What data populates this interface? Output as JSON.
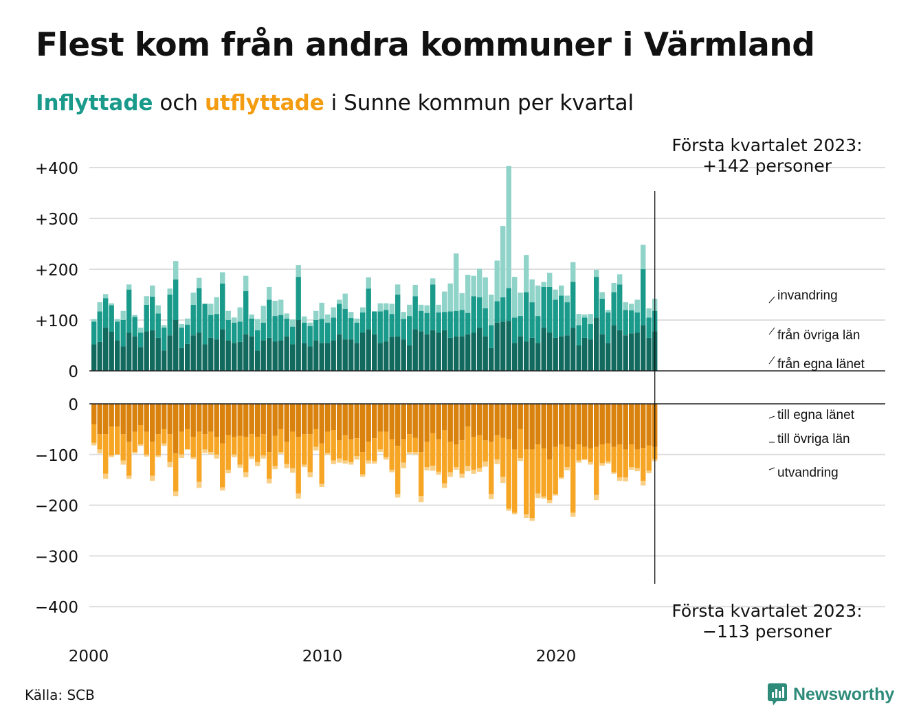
{
  "title": "Flest kom från andra kommuner i Värmland",
  "subtitle": {
    "in_word": "Inflyttade",
    "mid_word": " och ",
    "out_word": "utflyttade",
    "rest": " i Sunne kommun per kvartal"
  },
  "source": "Källa: SCB",
  "brand": "Newsworthy",
  "colors": {
    "in_own_county": "#126a5e",
    "in_other_counties": "#1a9a8a",
    "in_immigration": "#8fd3c9",
    "out_own_county": "#d9820d",
    "out_other_counties": "#f7a524",
    "out_emigration": "#f9cf86",
    "grid": "#dddddd",
    "brand": "#2e8b7a"
  },
  "chart_data": {
    "type": "bar",
    "stacked": true,
    "title": "Flest kom från andra kommuner i Värmland",
    "x_start": "2000 Q1",
    "x_ticks": [
      "2000",
      "2010",
      "2020"
    ],
    "y_ticks": [
      "+400",
      "+300",
      "+200",
      "+100",
      "0"
    ],
    "y_ticks_neg": [
      "0",
      "−100",
      "−200",
      "−300",
      "−400"
    ],
    "ylim": [
      -400,
      400
    ],
    "grid": true,
    "annotation_top": [
      "Första kvartalet 2023:",
      "+142 personer"
    ],
    "annotation_bottom": [
      "Första kvartalet 2023:",
      "−113 personer"
    ],
    "series_labels_in": [
      "invandring",
      "från övriga län",
      "från egna länet"
    ],
    "series_labels_out": [
      "till egna länet",
      "till övriga län",
      "utvandring"
    ],
    "inflow": [
      [
        52,
        45,
        5
      ],
      [
        57,
        60,
        18
      ],
      [
        85,
        58,
        8
      ],
      [
        77,
        52,
        4
      ],
      [
        60,
        37,
        5
      ],
      [
        48,
        52,
        18
      ],
      [
        75,
        85,
        10
      ],
      [
        68,
        38,
        4
      ],
      [
        47,
        28,
        10
      ],
      [
        78,
        52,
        17
      ],
      [
        80,
        66,
        22
      ],
      [
        65,
        48,
        16
      ],
      [
        40,
        45,
        5
      ],
      [
        70,
        80,
        12
      ],
      [
        100,
        80,
        36
      ],
      [
        45,
        40,
        7
      ],
      [
        53,
        38,
        12
      ],
      [
        70,
        60,
        24
      ],
      [
        75,
        88,
        20
      ],
      [
        52,
        80,
        0
      ],
      [
        65,
        45,
        22
      ],
      [
        62,
        50,
        33
      ],
      [
        82,
        90,
        22
      ],
      [
        60,
        40,
        18
      ],
      [
        55,
        40,
        10
      ],
      [
        57,
        40,
        28
      ],
      [
        72,
        85,
        30
      ],
      [
        68,
        35,
        8
      ],
      [
        40,
        40,
        22
      ],
      [
        60,
        35,
        33
      ],
      [
        65,
        75,
        25
      ],
      [
        58,
        50,
        30
      ],
      [
        60,
        50,
        30
      ],
      [
        68,
        35,
        10
      ],
      [
        52,
        35,
        14
      ],
      [
        100,
        85,
        23
      ],
      [
        55,
        40,
        12
      ],
      [
        48,
        40,
        7
      ],
      [
        60,
        40,
        18
      ],
      [
        55,
        47,
        32
      ],
      [
        55,
        40,
        16
      ],
      [
        60,
        45,
        20
      ],
      [
        72,
        60,
        8
      ],
      [
        62,
        60,
        30
      ],
      [
        62,
        42,
        12
      ],
      [
        55,
        40,
        8
      ],
      [
        75,
        40,
        10
      ],
      [
        82,
        80,
        22
      ],
      [
        72,
        45,
        0
      ],
      [
        55,
        62,
        16
      ],
      [
        58,
        62,
        13
      ],
      [
        67,
        45,
        20
      ],
      [
        68,
        82,
        20
      ],
      [
        62,
        40,
        14
      ],
      [
        50,
        58,
        22
      ],
      [
        82,
        65,
        22
      ],
      [
        78,
        40,
        12
      ],
      [
        72,
        42,
        15
      ],
      [
        80,
        90,
        12
      ],
      [
        75,
        40,
        15
      ],
      [
        80,
        36,
        40
      ],
      [
        65,
        52,
        55
      ],
      [
        68,
        50,
        113
      ],
      [
        68,
        52,
        33
      ],
      [
        72,
        42,
        75
      ],
      [
        75,
        72,
        40
      ],
      [
        85,
        60,
        56
      ],
      [
        68,
        55,
        61
      ],
      [
        45,
        45,
        60
      ],
      [
        95,
        42,
        80
      ],
      [
        97,
        48,
        140
      ],
      [
        98,
        65,
        240
      ],
      [
        55,
        50,
        80
      ],
      [
        68,
        40,
        46
      ],
      [
        58,
        97,
        73
      ],
      [
        65,
        70,
        45
      ],
      [
        55,
        53,
        60
      ],
      [
        85,
        80,
        10
      ],
      [
        75,
        90,
        28
      ],
      [
        65,
        75,
        20
      ],
      [
        68,
        80,
        20
      ],
      [
        70,
        65,
        13
      ],
      [
        85,
        90,
        39
      ],
      [
        50,
        40,
        22
      ],
      [
        65,
        40,
        6
      ],
      [
        62,
        30,
        20
      ],
      [
        105,
        80,
        14
      ],
      [
        72,
        70,
        13
      ],
      [
        55,
        60,
        5
      ],
      [
        90,
        65,
        18
      ],
      [
        80,
        90,
        20
      ],
      [
        70,
        50,
        15
      ],
      [
        74,
        45,
        13
      ],
      [
        75,
        40,
        25
      ],
      [
        90,
        110,
        48
      ],
      [
        65,
        40,
        18
      ],
      [
        78,
        40,
        24
      ]
    ],
    "outflow": [
      [
        40,
        37,
        5
      ],
      [
        60,
        30,
        8
      ],
      [
        60,
        78,
        10
      ],
      [
        45,
        57,
        3
      ],
      [
        45,
        55,
        0
      ],
      [
        60,
        52,
        8
      ],
      [
        75,
        67,
        6
      ],
      [
        55,
        40,
        3
      ],
      [
        42,
        38,
        3
      ],
      [
        55,
        45,
        4
      ],
      [
        75,
        67,
        10
      ],
      [
        60,
        42,
        3
      ],
      [
        50,
        28,
        5
      ],
      [
        60,
        55,
        10
      ],
      [
        98,
        75,
        9
      ],
      [
        55,
        45,
        7
      ],
      [
        50,
        40,
        0
      ],
      [
        65,
        40,
        4
      ],
      [
        55,
        99,
        12
      ],
      [
        60,
        30,
        7
      ],
      [
        55,
        40,
        5
      ],
      [
        65,
        35,
        8
      ],
      [
        78,
        87,
        6
      ],
      [
        62,
        68,
        7
      ],
      [
        65,
        35,
        5
      ],
      [
        63,
        57,
        6
      ],
      [
        65,
        70,
        10
      ],
      [
        60,
        44,
        5
      ],
      [
        65,
        50,
        8
      ],
      [
        60,
        42,
        6
      ],
      [
        95,
        53,
        9
      ],
      [
        63,
        60,
        6
      ],
      [
        50,
        45,
        4
      ],
      [
        75,
        44,
        8
      ],
      [
        55,
        72,
        9
      ],
      [
        65,
        112,
        10
      ],
      [
        60,
        60,
        5
      ],
      [
        60,
        75,
        10
      ],
      [
        50,
        35,
        7
      ],
      [
        78,
        80,
        6
      ],
      [
        55,
        42,
        4
      ],
      [
        52,
        60,
        7
      ],
      [
        72,
        36,
        8
      ],
      [
        62,
        50,
        6
      ],
      [
        70,
        45,
        5
      ],
      [
        68,
        35,
        7
      ],
      [
        95,
        44,
        5
      ],
      [
        75,
        37,
        6
      ],
      [
        68,
        45,
        5
      ],
      [
        55,
        35,
        5
      ],
      [
        55,
        50,
        5
      ],
      [
        70,
        60,
        5
      ],
      [
        83,
        95,
        7
      ],
      [
        70,
        46,
        11
      ],
      [
        60,
        35,
        4
      ],
      [
        67,
        28,
        5
      ],
      [
        95,
        87,
        12
      ],
      [
        75,
        50,
        6
      ],
      [
        58,
        64,
        10
      ],
      [
        70,
        64,
        6
      ],
      [
        52,
        105,
        9
      ],
      [
        75,
        60,
        9
      ],
      [
        80,
        45,
        5
      ],
      [
        72,
        66,
        8
      ],
      [
        45,
        78,
        10
      ],
      [
        65,
        65,
        8
      ],
      [
        62,
        65,
        7
      ],
      [
        72,
        42,
        10
      ],
      [
        75,
        103,
        10
      ],
      [
        62,
        48,
        9
      ],
      [
        67,
        77,
        12
      ],
      [
        70,
        137,
        4
      ],
      [
        90,
        125,
        3
      ],
      [
        50,
        57,
        6
      ],
      [
        90,
        128,
        7
      ],
      [
        90,
        135,
        6
      ],
      [
        80,
        97,
        9
      ],
      [
        88,
        95,
        4
      ],
      [
        110,
        80,
        6
      ],
      [
        85,
        93,
        3
      ],
      [
        80,
        65,
        3
      ],
      [
        85,
        40,
        6
      ],
      [
        90,
        125,
        8
      ],
      [
        80,
        32,
        4
      ],
      [
        85,
        25,
        0
      ],
      [
        88,
        27,
        5
      ],
      [
        85,
        95,
        10
      ],
      [
        80,
        37,
        5
      ],
      [
        78,
        36,
        4
      ],
      [
        85,
        50,
        3
      ],
      [
        80,
        65,
        7
      ],
      [
        90,
        55,
        8
      ],
      [
        80,
        45,
        5
      ],
      [
        90,
        37,
        6
      ],
      [
        87,
        65,
        9
      ],
      [
        82,
        50,
        5
      ],
      [
        85,
        24,
        4
      ]
    ]
  }
}
